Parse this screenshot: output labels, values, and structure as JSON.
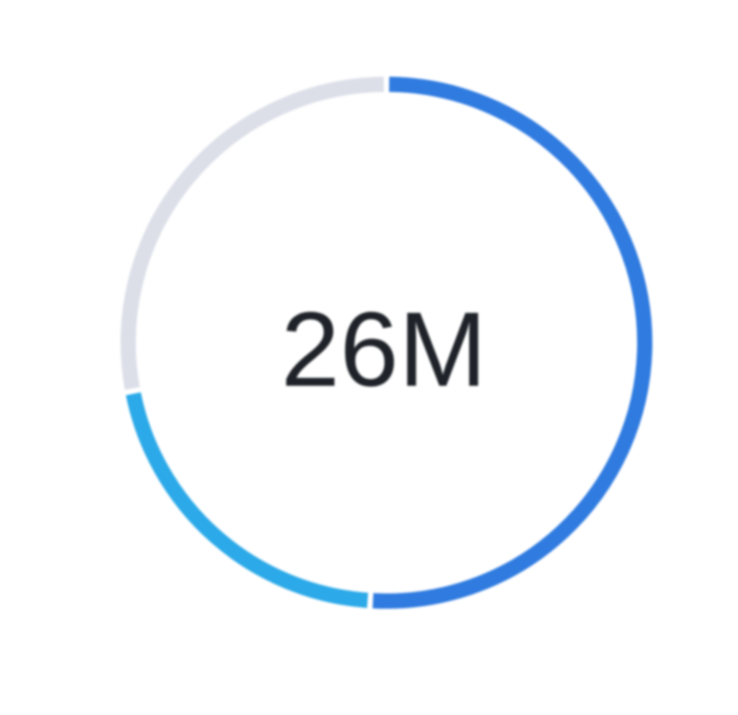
{
  "chart_data": {
    "type": "pie",
    "style": "donut",
    "center_label": "26M",
    "slices": [
      {
        "value": 51,
        "color": "#2f7be0"
      },
      {
        "value": 21,
        "color": "#2ba9e8"
      },
      {
        "value": 28,
        "color": "#dcdfe8"
      }
    ],
    "start": "top",
    "direction": "clockwise",
    "legend": "none",
    "grid": false
  }
}
